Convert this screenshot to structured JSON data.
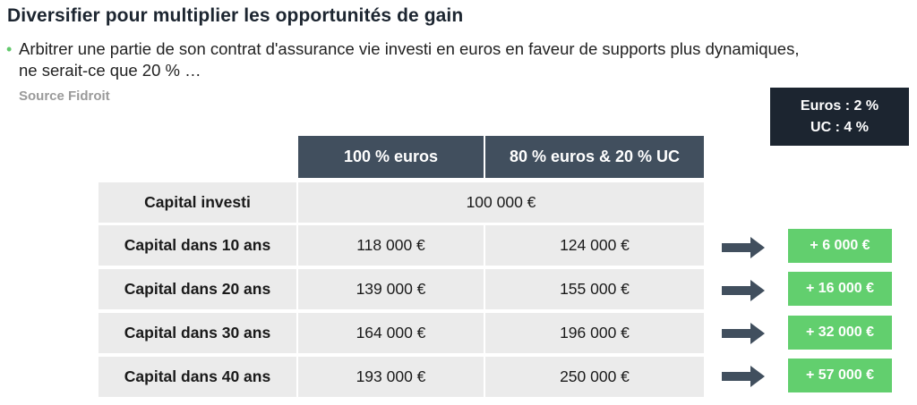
{
  "title": "Diversifier pour multiplier les opportunités de gain",
  "bullet": {
    "line1": "Arbitrer une partie de son contrat d'assurance vie investi en euros en faveur de supports plus dynamiques,",
    "line2": "ne serait-ce que 20 % …"
  },
  "source": "Source Fidroit",
  "rates": {
    "euros": "Euros : 2 %",
    "uc": "UC : 4 %"
  },
  "table": {
    "headers": [
      "100 % euros",
      "80 % euros & 20 % UC"
    ],
    "capital_row": {
      "label": "Capital investi",
      "value": "100 000 €"
    },
    "rows": [
      {
        "label": "Capital dans 10 ans",
        "euros": "118 000 €",
        "mix": "124 000 €",
        "gain": "+ 6 000 €"
      },
      {
        "label": "Capital dans 20 ans",
        "euros": "139 000 €",
        "mix": "155 000 €",
        "gain": "+ 16 000 €"
      },
      {
        "label": "Capital dans 30 ans",
        "euros": "164 000 €",
        "mix": "196 000 €",
        "gain": "+ 32 000 €"
      },
      {
        "label": "Capital dans 40 ans",
        "euros": "193 000 €",
        "mix": "250 000 €",
        "gain": "+ 57 000 €"
      }
    ]
  },
  "colors": {
    "header_bg": "#414f5e",
    "cell_bg": "#ebebeb",
    "gain_bg": "#62cf6e",
    "dark_box": "#1c2530",
    "arrow": "#414f5e"
  }
}
